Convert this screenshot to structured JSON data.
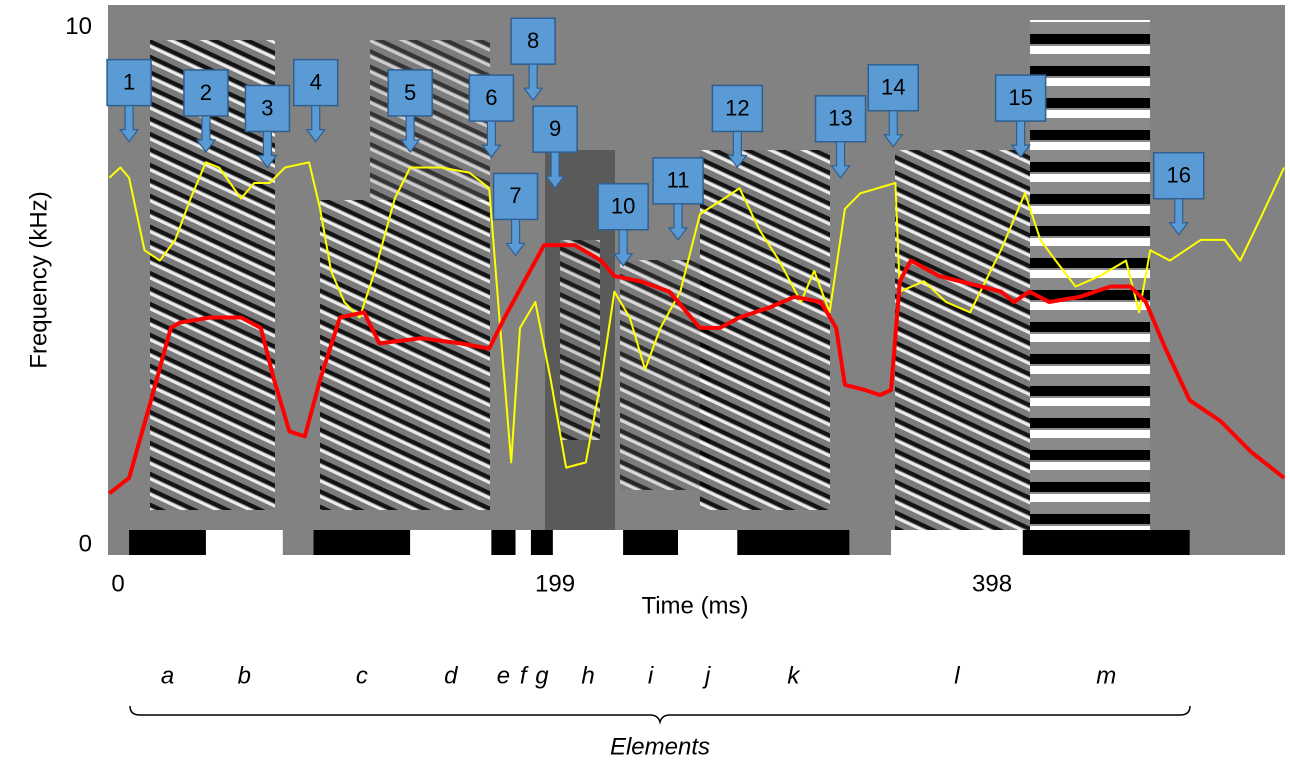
{
  "chart_data": {
    "type": "spectrogram",
    "xlabel": "Time (ms)",
    "ylabel": "Frequency (kHz)",
    "footer_label": "Elements",
    "xlim": [
      -4.6,
      531.4
    ],
    "ylim": [
      -0.19,
      10.44
    ],
    "xticks": [
      0,
      199,
      398
    ],
    "yticks": [
      0,
      10
    ],
    "series": [
      {
        "color": "#ffff00",
        "x": [
          -4,
          1,
          5,
          12,
          19,
          26,
          33,
          40,
          46,
          56,
          62,
          69,
          76,
          87,
          92,
          97,
          103,
          110,
          117,
          126,
          133,
          147,
          160,
          169,
          174,
          179,
          183,
          190,
          197,
          204,
          213,
          220,
          226,
          233,
          240,
          247,
          256,
          265,
          276,
          283,
          292,
          301,
          311,
          317,
          324,
          331,
          338,
          354,
          356,
          367,
          377,
          388,
          402,
          413,
          420,
          427,
          436,
          447,
          459,
          465,
          470,
          479,
          493,
          504,
          511,
          520,
          531
        ],
        "values": [
          7.1,
          7.3,
          7.1,
          5.7,
          5.5,
          5.9,
          6.7,
          7.4,
          7.3,
          6.7,
          7.0,
          7.0,
          7.3,
          7.4,
          6.5,
          5.3,
          4.7,
          4.4,
          5.3,
          6.7,
          7.3,
          7.3,
          7.2,
          6.9,
          4.2,
          1.6,
          4.2,
          4.7,
          3.2,
          1.5,
          1.6,
          3.2,
          4.9,
          4.4,
          3.4,
          4.2,
          4.9,
          6.4,
          6.7,
          6.9,
          6.1,
          5.5,
          4.7,
          5.3,
          4.5,
          6.5,
          6.8,
          7.0,
          4.9,
          5.1,
          4.7,
          4.5,
          5.7,
          6.8,
          5.9,
          5.5,
          5.0,
          5.2,
          5.5,
          4.5,
          5.7,
          5.5,
          5.9,
          5.9,
          5.5,
          6.3,
          7.3
        ]
      },
      {
        "color": "#ff0000",
        "x": [
          -4,
          5,
          15,
          24,
          28,
          42,
          56,
          65,
          71,
          78,
          85,
          92,
          101,
          112,
          119,
          138,
          156,
          169,
          176,
          185,
          194,
          208,
          220,
          226,
          238,
          251,
          265,
          274,
          283,
          297,
          308,
          320,
          327,
          331,
          340,
          347,
          352,
          356,
          361,
          374,
          393,
          402,
          408,
          415,
          424,
          438,
          452,
          461,
          468,
          477,
          488,
          502,
          516,
          531
        ],
        "values": [
          1.0,
          1.3,
          2.8,
          4.2,
          4.3,
          4.4,
          4.4,
          4.2,
          3.2,
          2.2,
          2.1,
          3.2,
          4.4,
          4.5,
          3.9,
          4.0,
          3.9,
          3.8,
          4.4,
          5.1,
          5.8,
          5.8,
          5.5,
          5.2,
          5.1,
          4.9,
          4.2,
          4.2,
          4.4,
          4.6,
          4.8,
          4.7,
          4.2,
          3.1,
          3.0,
          2.9,
          3.0,
          5.1,
          5.5,
          5.2,
          5.0,
          4.9,
          4.7,
          4.9,
          4.7,
          4.8,
          5.0,
          5.0,
          4.7,
          3.8,
          2.8,
          2.4,
          1.8,
          1.3
        ]
      }
    ],
    "annotations": [
      {
        "label": "1",
        "x": 5,
        "y": 7.8
      },
      {
        "label": "2",
        "x": 40,
        "y": 7.6
      },
      {
        "label": "3",
        "x": 68,
        "y": 7.3
      },
      {
        "label": "4",
        "x": 90,
        "y": 7.8
      },
      {
        "label": "5",
        "x": 133,
        "y": 7.6
      },
      {
        "label": "6",
        "x": 170,
        "y": 7.5
      },
      {
        "label": "7",
        "x": 181,
        "y": 5.6
      },
      {
        "label": "8",
        "x": 189,
        "y": 8.6
      },
      {
        "label": "9",
        "x": 199,
        "y": 6.9
      },
      {
        "label": "10",
        "x": 230,
        "y": 5.4
      },
      {
        "label": "11",
        "x": 255,
        "y": 5.9
      },
      {
        "label": "12",
        "x": 282,
        "y": 7.3
      },
      {
        "label": "13",
        "x": 329,
        "y": 7.1
      },
      {
        "label": "14",
        "x": 353,
        "y": 7.7
      },
      {
        "label": "15",
        "x": 411,
        "y": 7.5
      },
      {
        "label": "16",
        "x": 483,
        "y": 6.0
      }
    ],
    "elements": [
      {
        "label": "a",
        "start": 5,
        "end": 40,
        "color": "#000000"
      },
      {
        "label": "b",
        "start": 40,
        "end": 75,
        "color": "#ffffff"
      },
      {
        "label": "c",
        "start": 89,
        "end": 133,
        "color": "#000000"
      },
      {
        "label": "d",
        "start": 133,
        "end": 170,
        "color": "#ffffff"
      },
      {
        "label": "e",
        "start": 170,
        "end": 181,
        "color": "#000000"
      },
      {
        "label": "f",
        "start": 181,
        "end": 188,
        "color": "#ffffff"
      },
      {
        "label": "g",
        "start": 188,
        "end": 198,
        "color": "#000000"
      },
      {
        "label": "h",
        "start": 198,
        "end": 230,
        "color": "#ffffff"
      },
      {
        "label": "i",
        "start": 230,
        "end": 255,
        "color": "#000000"
      },
      {
        "label": "j",
        "start": 255,
        "end": 282,
        "color": "#ffffff"
      },
      {
        "label": "k",
        "start": 282,
        "end": 333,
        "color": "#000000"
      },
      {
        "label": "l",
        "start": 352,
        "end": 412,
        "color": "#ffffff"
      },
      {
        "label": "m",
        "start": 412,
        "end": 488,
        "color": "#000000"
      }
    ]
  }
}
